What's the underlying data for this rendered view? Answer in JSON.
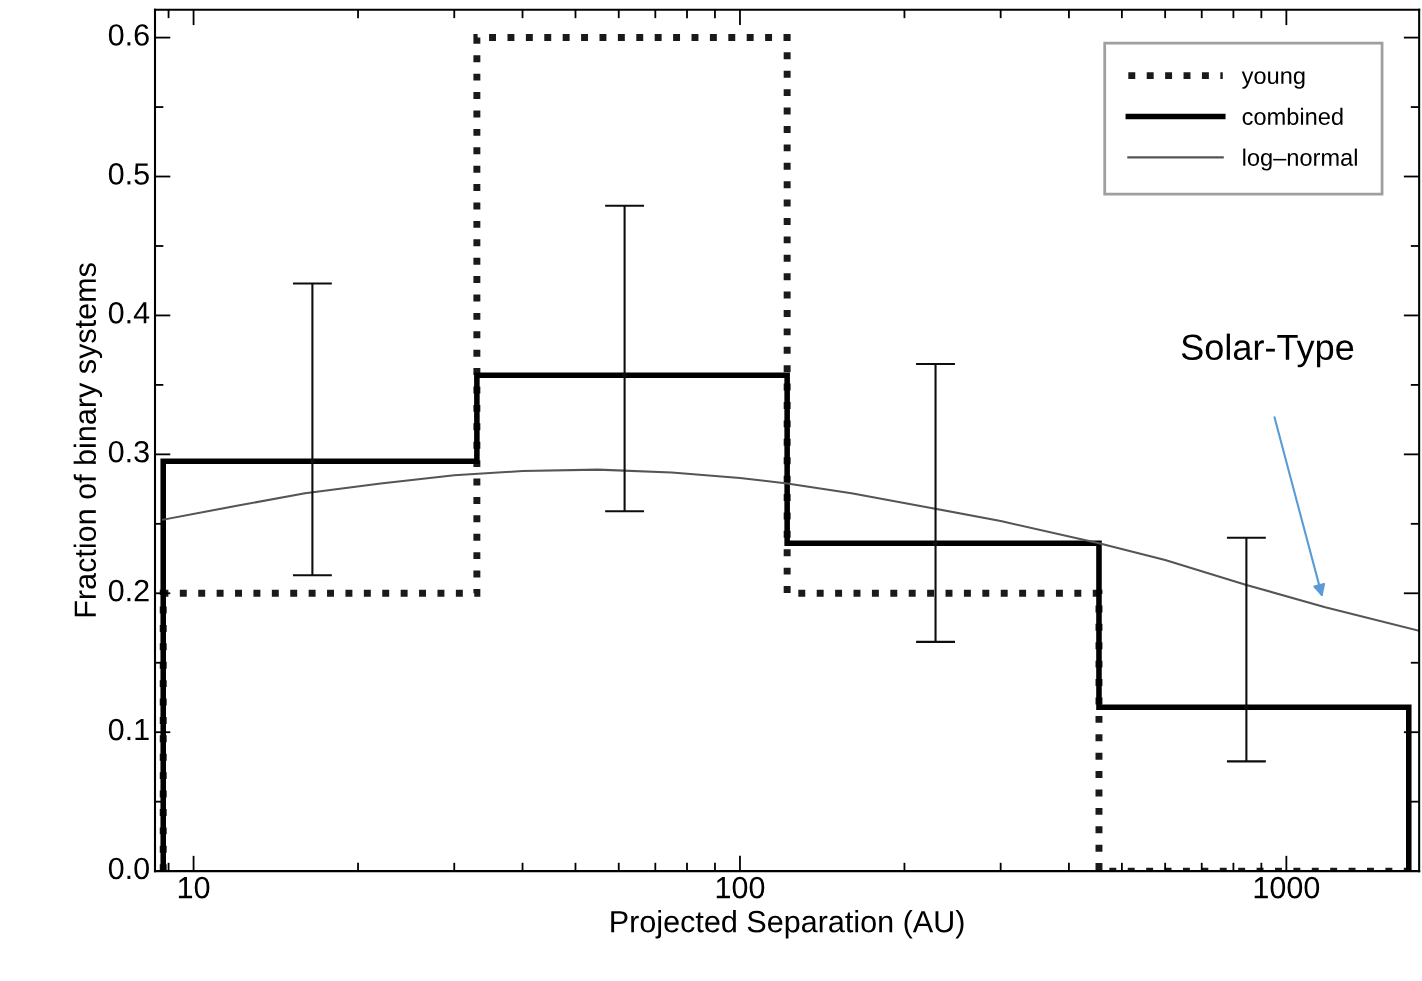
{
  "chart_data": {
    "type": "histogram",
    "xlabel": "Projected Separation (AU)",
    "ylabel": "Fraction of binary systems",
    "log": "x",
    "xlim": [
      8.5,
      1750
    ],
    "xticks": [
      10,
      100,
      1000
    ],
    "ylim": [
      0,
      0.62
    ],
    "yticks": [
      {
        "value": 0,
        "label": "0.0"
      },
      0.1,
      0.2,
      0.3,
      0.4,
      0.5,
      0.6
    ],
    "grid": false,
    "legend": "top right",
    "series": [
      {
        "name": "young",
        "color": "#1a1a1a",
        "line_style": "dotted",
        "bins": [
          8.8,
          33,
          122,
          454,
          1675
        ],
        "values": [
          0.2,
          0.6,
          0.2,
          0.0
        ]
      },
      {
        "name": "combined",
        "color": "#000000",
        "line_style": "solid",
        "bins": [
          8.8,
          33,
          122,
          454,
          1675
        ],
        "values": [
          0.295,
          0.357,
          0.236,
          0.118
        ]
      },
      {
        "type": "line",
        "name": "log–normal",
        "color": "#555555",
        "line_style": "solid",
        "marker": "none",
        "x": [
          8.8,
          12,
          16,
          22,
          30,
          40,
          55,
          75,
          100,
          122,
          160,
          220,
          300,
          454,
          600,
          845,
          1178,
          1750
        ],
        "values": [
          0.253,
          0.263,
          0.272,
          0.279,
          0.285,
          0.288,
          0.289,
          0.287,
          0.283,
          0.279,
          0.272,
          0.262,
          0.252,
          0.236,
          0.224,
          0.206,
          0.19,
          0.173
        ]
      },
      {
        "type": "scatter",
        "color": "#0d0d0d",
        "marker": "none",
        "x": [
          16.5,
          61.5,
          228,
          845
        ],
        "values": [
          0.295,
          0.357,
          0.236,
          0.118
        ],
        "errors": [
          [
            0.213,
            0.423
          ],
          [
            0.259,
            0.479
          ],
          [
            0.165,
            0.365
          ],
          [
            0.079,
            0.24
          ]
        ]
      }
    ],
    "annotations": [
      "Solar-Type"
    ]
  }
}
